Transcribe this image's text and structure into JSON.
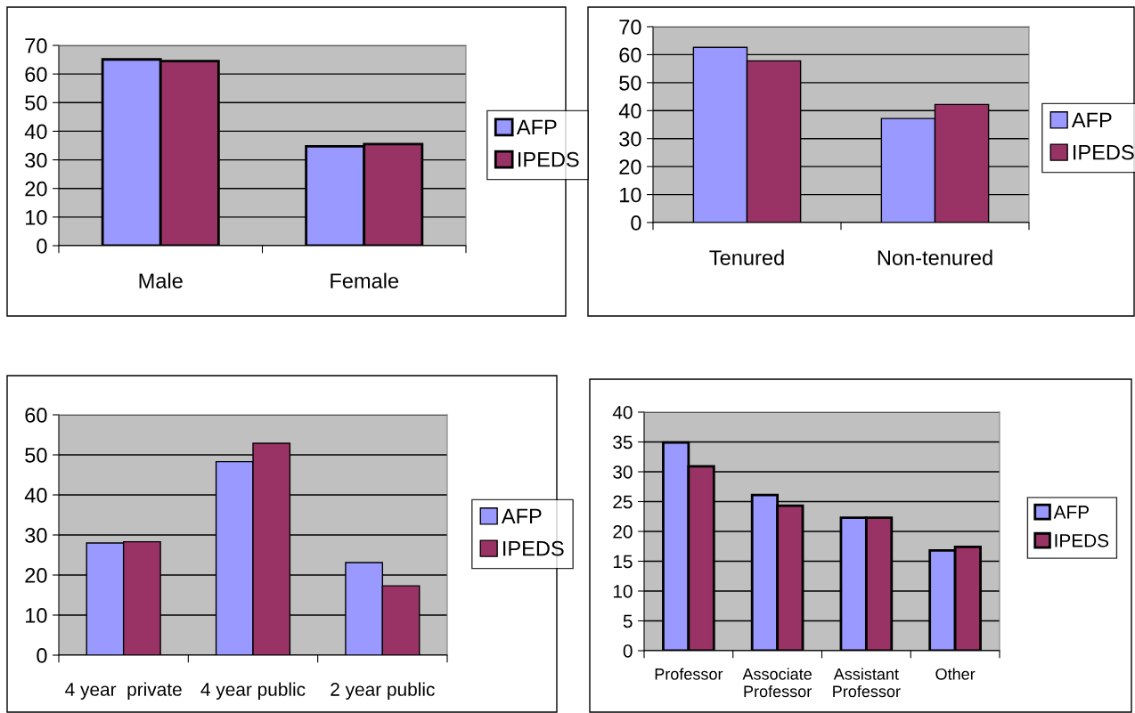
{
  "chart_data": [
    {
      "type": "bar",
      "categories": [
        "Male",
        "Female"
      ],
      "series": [
        {
          "name": "AFP",
          "color": "#9999ff",
          "values": [
            65.1,
            34.7
          ]
        },
        {
          "name": "IPEDS",
          "color": "#993366",
          "values": [
            64.5,
            35.5
          ]
        }
      ],
      "ylim": [
        0,
        70
      ],
      "yticks": [
        0,
        10,
        20,
        30,
        40,
        50,
        60,
        70
      ],
      "grid": "y",
      "legend": "right"
    },
    {
      "type": "bar",
      "categories": [
        "Tenured",
        "Non-tenured"
      ],
      "series": [
        {
          "name": "AFP",
          "color": "#9999ff",
          "values": [
            62.6,
            37.2
          ]
        },
        {
          "name": "IPEDS",
          "color": "#993366",
          "values": [
            57.8,
            42.2
          ]
        }
      ],
      "ylim": [
        0,
        70
      ],
      "yticks": [
        0,
        10,
        20,
        30,
        40,
        50,
        60,
        70
      ],
      "grid": "y",
      "legend": "right"
    },
    {
      "type": "bar",
      "categories": [
        "4 year  private",
        "4 year public",
        "2 year public"
      ],
      "series": [
        {
          "name": "AFP",
          "color": "#9999ff",
          "values": [
            28.0,
            48.3,
            23.1
          ]
        },
        {
          "name": "IPEDS",
          "color": "#993366",
          "values": [
            28.3,
            52.9,
            17.3
          ]
        }
      ],
      "ylim": [
        0,
        60
      ],
      "yticks": [
        0,
        10,
        20,
        30,
        40,
        50,
        60
      ],
      "grid": "y",
      "legend": "right"
    },
    {
      "type": "bar",
      "categories": [
        "Professor",
        "Associate\nProfessor",
        "Assistant\nProfessor",
        "Other"
      ],
      "series": [
        {
          "name": "AFP",
          "color": "#9999ff",
          "values": [
            34.9,
            26.1,
            22.3,
            16.8
          ]
        },
        {
          "name": "IPEDS",
          "color": "#993366",
          "values": [
            30.9,
            24.3,
            22.3,
            17.4
          ]
        }
      ],
      "ylim": [
        0,
        40
      ],
      "yticks": [
        0,
        5,
        10,
        15,
        20,
        25,
        30,
        35,
        40
      ],
      "grid": "y",
      "legend": "right"
    }
  ]
}
